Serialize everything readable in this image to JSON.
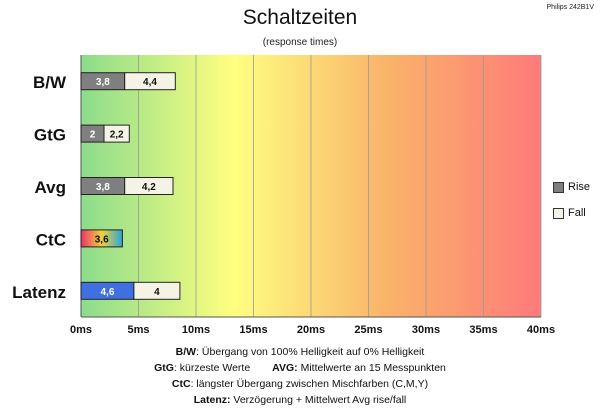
{
  "header": {
    "title": "Schaltzeiten",
    "subtitle": "(response times)",
    "corner_label": "Philips 242B1V"
  },
  "chart_data": {
    "type": "bar",
    "orientation": "horizontal",
    "stacked": true,
    "categories": [
      "B/W",
      "GtG",
      "Avg",
      "CtC",
      "Latenz"
    ],
    "series": [
      {
        "name": "Rise",
        "values": [
          3.8,
          2,
          3.8,
          3.6,
          4.6
        ],
        "labels": [
          "3,8",
          "2",
          "3,8",
          "3,6",
          "4,6"
        ]
      },
      {
        "name": "Fall",
        "values": [
          4.4,
          2.2,
          4.2,
          null,
          4
        ],
        "labels": [
          "4,4",
          "2,2",
          "4,2",
          "",
          "4"
        ]
      }
    ],
    "xlim": [
      0,
      40
    ],
    "xticks": [
      0,
      5,
      10,
      15,
      20,
      25,
      30,
      35,
      40
    ],
    "xtick_labels": [
      "0ms",
      "5ms",
      "10ms",
      "15ms",
      "20ms",
      "25ms",
      "30ms",
      "35ms",
      "40ms"
    ],
    "grid": true,
    "legend_position": "right",
    "background": "gradient green-yellow-orange-red",
    "colors": {
      "rise": "#7f7f7f",
      "fall": "#f4f3e6",
      "latenz_rise": "#3f6fe0",
      "ctc": [
        "#e8336d",
        "#f2d23a",
        "#2aa6d8"
      ],
      "gradient": [
        "#8bdc8b",
        "#ffff80",
        "#f9b36a",
        "#ff7a7a"
      ]
    }
  },
  "notes": {
    "line1": {
      "key": "B/W",
      "text": ":  Übergang von 100% Helligkeit auf 0% Helligkeit"
    },
    "line2": {
      "key1": "GtG",
      "text1": ": kürzeste  Werte",
      "key2": "AVG:",
      "text2": " Mittelwerte  an 15 Messpunkten"
    },
    "line3": {
      "key": "CtC",
      "text": ": längster Übergang  zwischen Mischfarben  (C,M,Y)"
    },
    "line4": {
      "key": "Latenz:",
      "text": " Verzögerung  + Mittelwert  Avg rise/fall"
    }
  }
}
